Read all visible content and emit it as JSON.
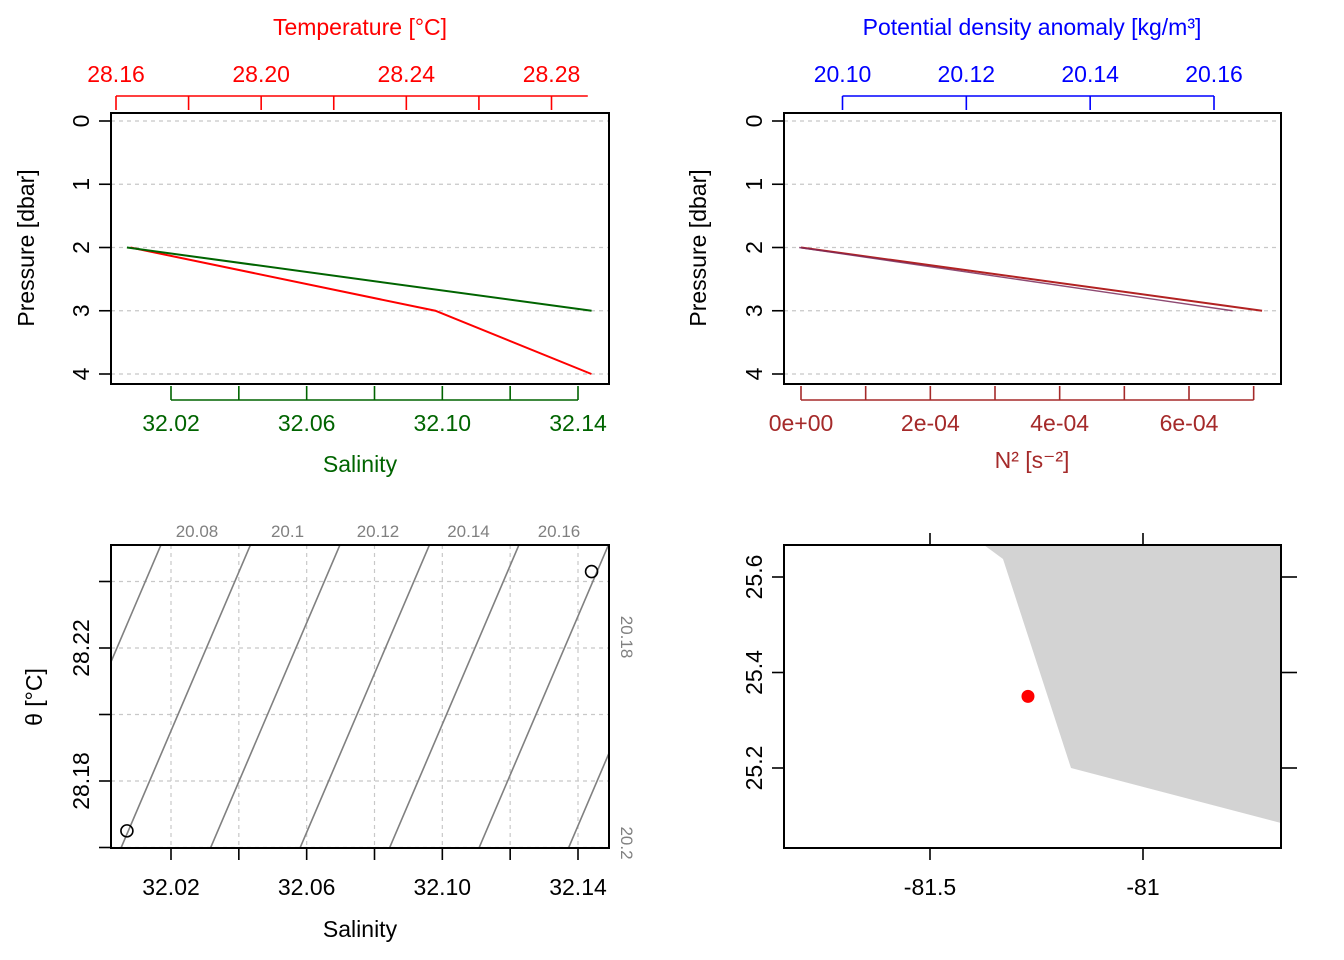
{
  "colors": {
    "temperature": "#ff0000",
    "salinity": "#006400",
    "density": "#0000ff",
    "n2": "#a52a2a",
    "n2_line": "#b22222",
    "density_line": "#7a2a5a",
    "isopycnal": "#808080",
    "land": "#d3d3d3",
    "station": "#ff0000"
  },
  "chart_data": [
    {
      "id": "profile-ts",
      "type": "line",
      "ylabel": "Pressure [dbar]",
      "ylim": [
        4,
        0
      ],
      "yticks": [
        "0",
        "1",
        "2",
        "3",
        "4"
      ],
      "top_axis": {
        "label": "Temperature [°C]",
        "ticks": [
          "28.16",
          "28.20",
          "28.24",
          "28.28"
        ]
      },
      "bottom_axis": {
        "label": "Salinity",
        "ticks": [
          "32.02",
          "32.06",
          "32.10",
          "32.14"
        ]
      },
      "series": [
        {
          "name": "Temperature",
          "points": [
            [
              28.164,
              2
            ],
            [
              28.248,
              3
            ],
            [
              28.291,
              4
            ]
          ]
        },
        {
          "name": "Salinity",
          "points": [
            [
              32.007,
              2
            ],
            [
              32.144,
              3
            ]
          ]
        }
      ]
    },
    {
      "id": "profile-density",
      "type": "line",
      "ylabel": "Pressure [dbar]",
      "ylim": [
        4,
        0
      ],
      "yticks": [
        "0",
        "1",
        "2",
        "3",
        "4"
      ],
      "top_axis": {
        "label": "Potential density anomaly [kg/m³]",
        "ticks": [
          "20.10",
          "20.12",
          "20.14",
          "20.16"
        ]
      },
      "bottom_axis": {
        "label": "N² [s⁻²]",
        "ticks": [
          "0e+00",
          "2e-04",
          "4e-04",
          "6e-04"
        ]
      },
      "series": [
        {
          "name": "Potential density anomaly",
          "points": [
            [
              20.093,
              2
            ],
            [
              20.163,
              3
            ]
          ]
        },
        {
          "name": "N²",
          "points": [
            [
              0,
              2
            ],
            [
              0.000713,
              3
            ]
          ]
        }
      ]
    },
    {
      "id": "ts-diagram",
      "type": "scatter",
      "xlabel": "Salinity",
      "ylabel": "θ [°C]",
      "xticks": [
        "32.02",
        "32.06",
        "32.10",
        "32.14"
      ],
      "yticks": [
        "28.18",
        "28.22"
      ],
      "isopycnal_labels": [
        "20.08",
        "20.1",
        "20.12",
        "20.14",
        "20.16",
        "20.18",
        "20.2"
      ],
      "points": [
        [
          32.007,
          28.165
        ],
        [
          32.144,
          28.243
        ]
      ]
    },
    {
      "id": "station-map",
      "type": "scatter",
      "xticks": [
        "-81.5",
        "-81"
      ],
      "yticks": [
        "25.2",
        "25.4",
        "25.6"
      ],
      "station": [
        -81.27,
        25.35
      ]
    }
  ]
}
